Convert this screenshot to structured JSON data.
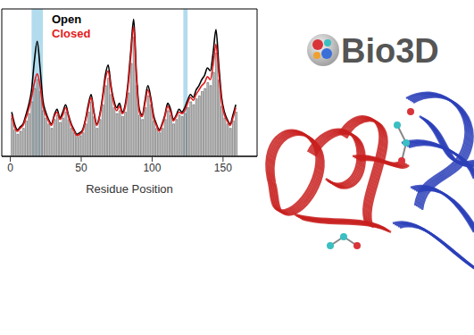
{
  "chart_data": {
    "type": "line",
    "xlabel": "Residue Position",
    "xlim": [
      -6,
      174
    ],
    "xticks": [
      0,
      50,
      100,
      150
    ],
    "ylim": [
      0,
      1
    ],
    "tick_labels": "x",
    "legend": "upper left",
    "highlight_ranges": [
      [
        15,
        23
      ],
      [
        122,
        125
      ]
    ],
    "x": [
      1,
      3,
      5,
      7,
      9,
      11,
      13,
      15,
      17,
      19,
      21,
      23,
      25,
      27,
      29,
      31,
      33,
      35,
      37,
      39,
      41,
      43,
      45,
      47,
      49,
      51,
      53,
      55,
      57,
      59,
      61,
      63,
      65,
      67,
      69,
      71,
      73,
      75,
      77,
      79,
      81,
      83,
      85,
      87,
      89,
      91,
      93,
      95,
      97,
      99,
      101,
      103,
      105,
      107,
      109,
      111,
      113,
      115,
      117,
      119,
      121,
      123,
      125,
      127,
      129,
      131,
      133,
      135,
      137,
      139,
      141,
      143,
      145,
      147,
      149,
      151,
      153,
      155,
      157,
      159
    ],
    "series": [
      {
        "type": "bar",
        "color": "#c8c8c8",
        "values": [
          0.26,
          0.18,
          0.15,
          0.17,
          0.19,
          0.24,
          0.29,
          0.37,
          0.46,
          0.52,
          0.44,
          0.31,
          0.26,
          0.22,
          0.19,
          0.25,
          0.28,
          0.23,
          0.26,
          0.3,
          0.25,
          0.19,
          0.16,
          0.13,
          0.14,
          0.16,
          0.22,
          0.3,
          0.37,
          0.27,
          0.19,
          0.25,
          0.35,
          0.48,
          0.53,
          0.42,
          0.33,
          0.29,
          0.31,
          0.27,
          0.3,
          0.43,
          0.63,
          0.81,
          0.48,
          0.28,
          0.25,
          0.33,
          0.41,
          0.35,
          0.24,
          0.19,
          0.16,
          0.19,
          0.25,
          0.31,
          0.28,
          0.22,
          0.25,
          0.28,
          0.27,
          0.29,
          0.33,
          0.37,
          0.35,
          0.39,
          0.41,
          0.44,
          0.46,
          0.5,
          0.48,
          0.57,
          0.7,
          0.52,
          0.34,
          0.26,
          0.22,
          0.19,
          0.24,
          0.3
        ]
      },
      {
        "name": "Open",
        "type": "line",
        "color": "#000000",
        "values": [
          0.3,
          0.22,
          0.18,
          0.2,
          0.22,
          0.28,
          0.35,
          0.45,
          0.65,
          0.78,
          0.6,
          0.38,
          0.3,
          0.25,
          0.22,
          0.28,
          0.32,
          0.26,
          0.3,
          0.35,
          0.28,
          0.22,
          0.18,
          0.15,
          0.16,
          0.18,
          0.25,
          0.35,
          0.42,
          0.3,
          0.22,
          0.28,
          0.4,
          0.55,
          0.62,
          0.48,
          0.38,
          0.33,
          0.36,
          0.3,
          0.35,
          0.5,
          0.72,
          0.93,
          0.55,
          0.32,
          0.28,
          0.38,
          0.48,
          0.4,
          0.28,
          0.22,
          0.18,
          0.22,
          0.28,
          0.36,
          0.32,
          0.25,
          0.28,
          0.32,
          0.3,
          0.33,
          0.38,
          0.42,
          0.4,
          0.45,
          0.48,
          0.52,
          0.55,
          0.6,
          0.58,
          0.7,
          0.86,
          0.62,
          0.4,
          0.3,
          0.25,
          0.22,
          0.28,
          0.35
        ]
      },
      {
        "name": "Closed",
        "type": "line",
        "color": "#e41a1c",
        "values": [
          0.28,
          0.2,
          0.17,
          0.19,
          0.21,
          0.26,
          0.32,
          0.4,
          0.5,
          0.56,
          0.48,
          0.34,
          0.28,
          0.24,
          0.21,
          0.27,
          0.3,
          0.25,
          0.28,
          0.33,
          0.27,
          0.21,
          0.17,
          0.14,
          0.15,
          0.17,
          0.24,
          0.33,
          0.4,
          0.29,
          0.21,
          0.27,
          0.38,
          0.52,
          0.58,
          0.46,
          0.36,
          0.31,
          0.34,
          0.29,
          0.33,
          0.47,
          0.68,
          0.88,
          0.52,
          0.3,
          0.27,
          0.36,
          0.45,
          0.38,
          0.26,
          0.21,
          0.17,
          0.21,
          0.27,
          0.34,
          0.3,
          0.24,
          0.27,
          0.3,
          0.29,
          0.31,
          0.36,
          0.4,
          0.38,
          0.42,
          0.45,
          0.48,
          0.5,
          0.54,
          0.52,
          0.62,
          0.76,
          0.56,
          0.37,
          0.28,
          0.24,
          0.21,
          0.26,
          0.33
        ]
      }
    ]
  },
  "logo": {
    "text": "Bio3D"
  }
}
